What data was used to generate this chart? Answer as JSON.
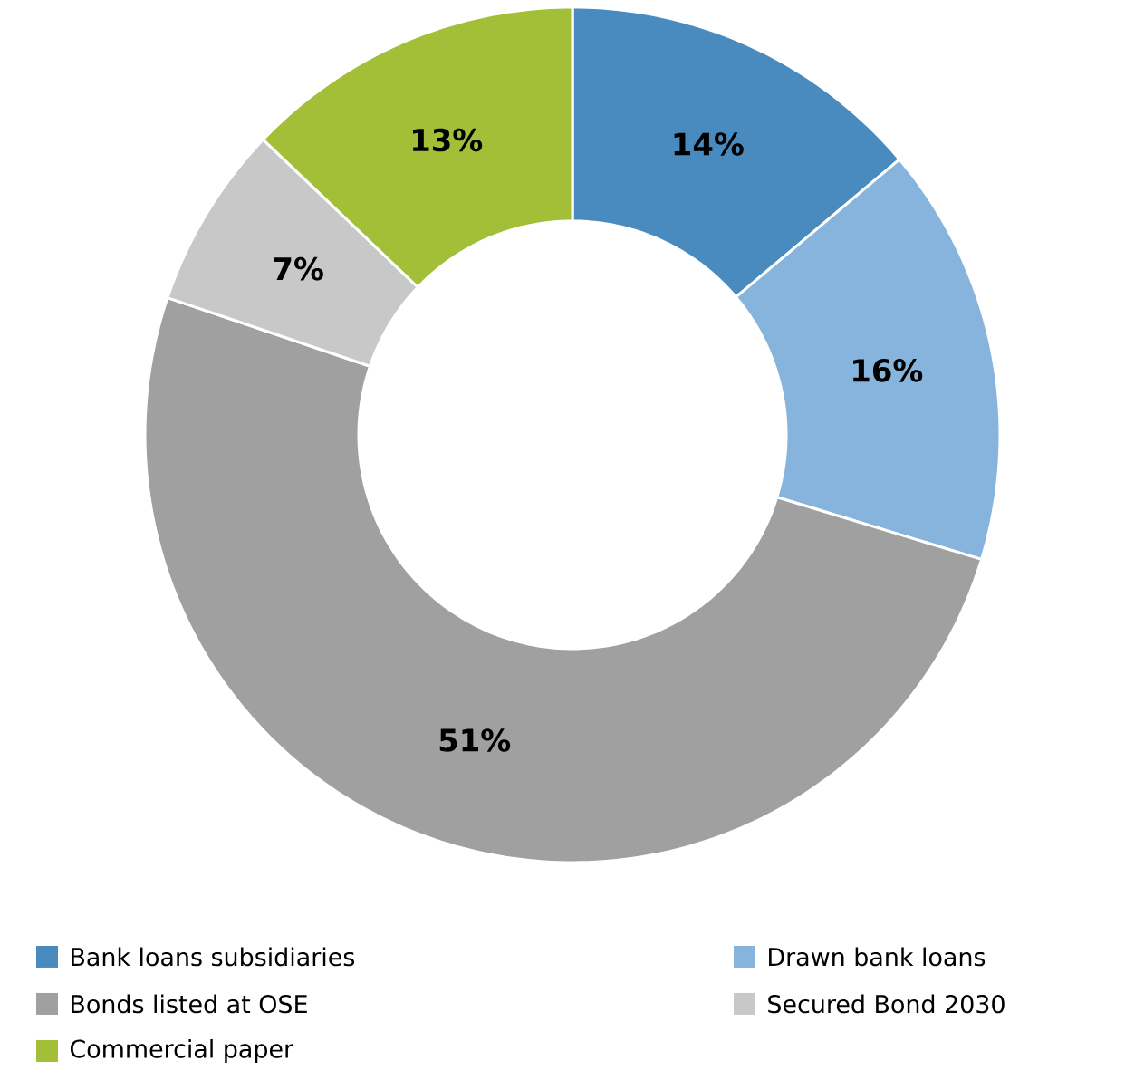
{
  "chart_data": {
    "type": "donut",
    "categories": [
      "Bank loans subsidiaries",
      "Drawn bank loans",
      "Bonds listed at OSE",
      "Secured Bond 2030",
      "Commercial paper"
    ],
    "values": [
      14,
      16,
      51,
      7,
      13
    ],
    "value_labels": [
      "14%",
      "16%",
      "51%",
      "7%",
      "13%"
    ],
    "colors": [
      "#4a8bbf",
      "#86b4dc",
      "#a0a0a0",
      "#c8c8c8",
      "#a2bf37"
    ],
    "legend": "bottom"
  }
}
